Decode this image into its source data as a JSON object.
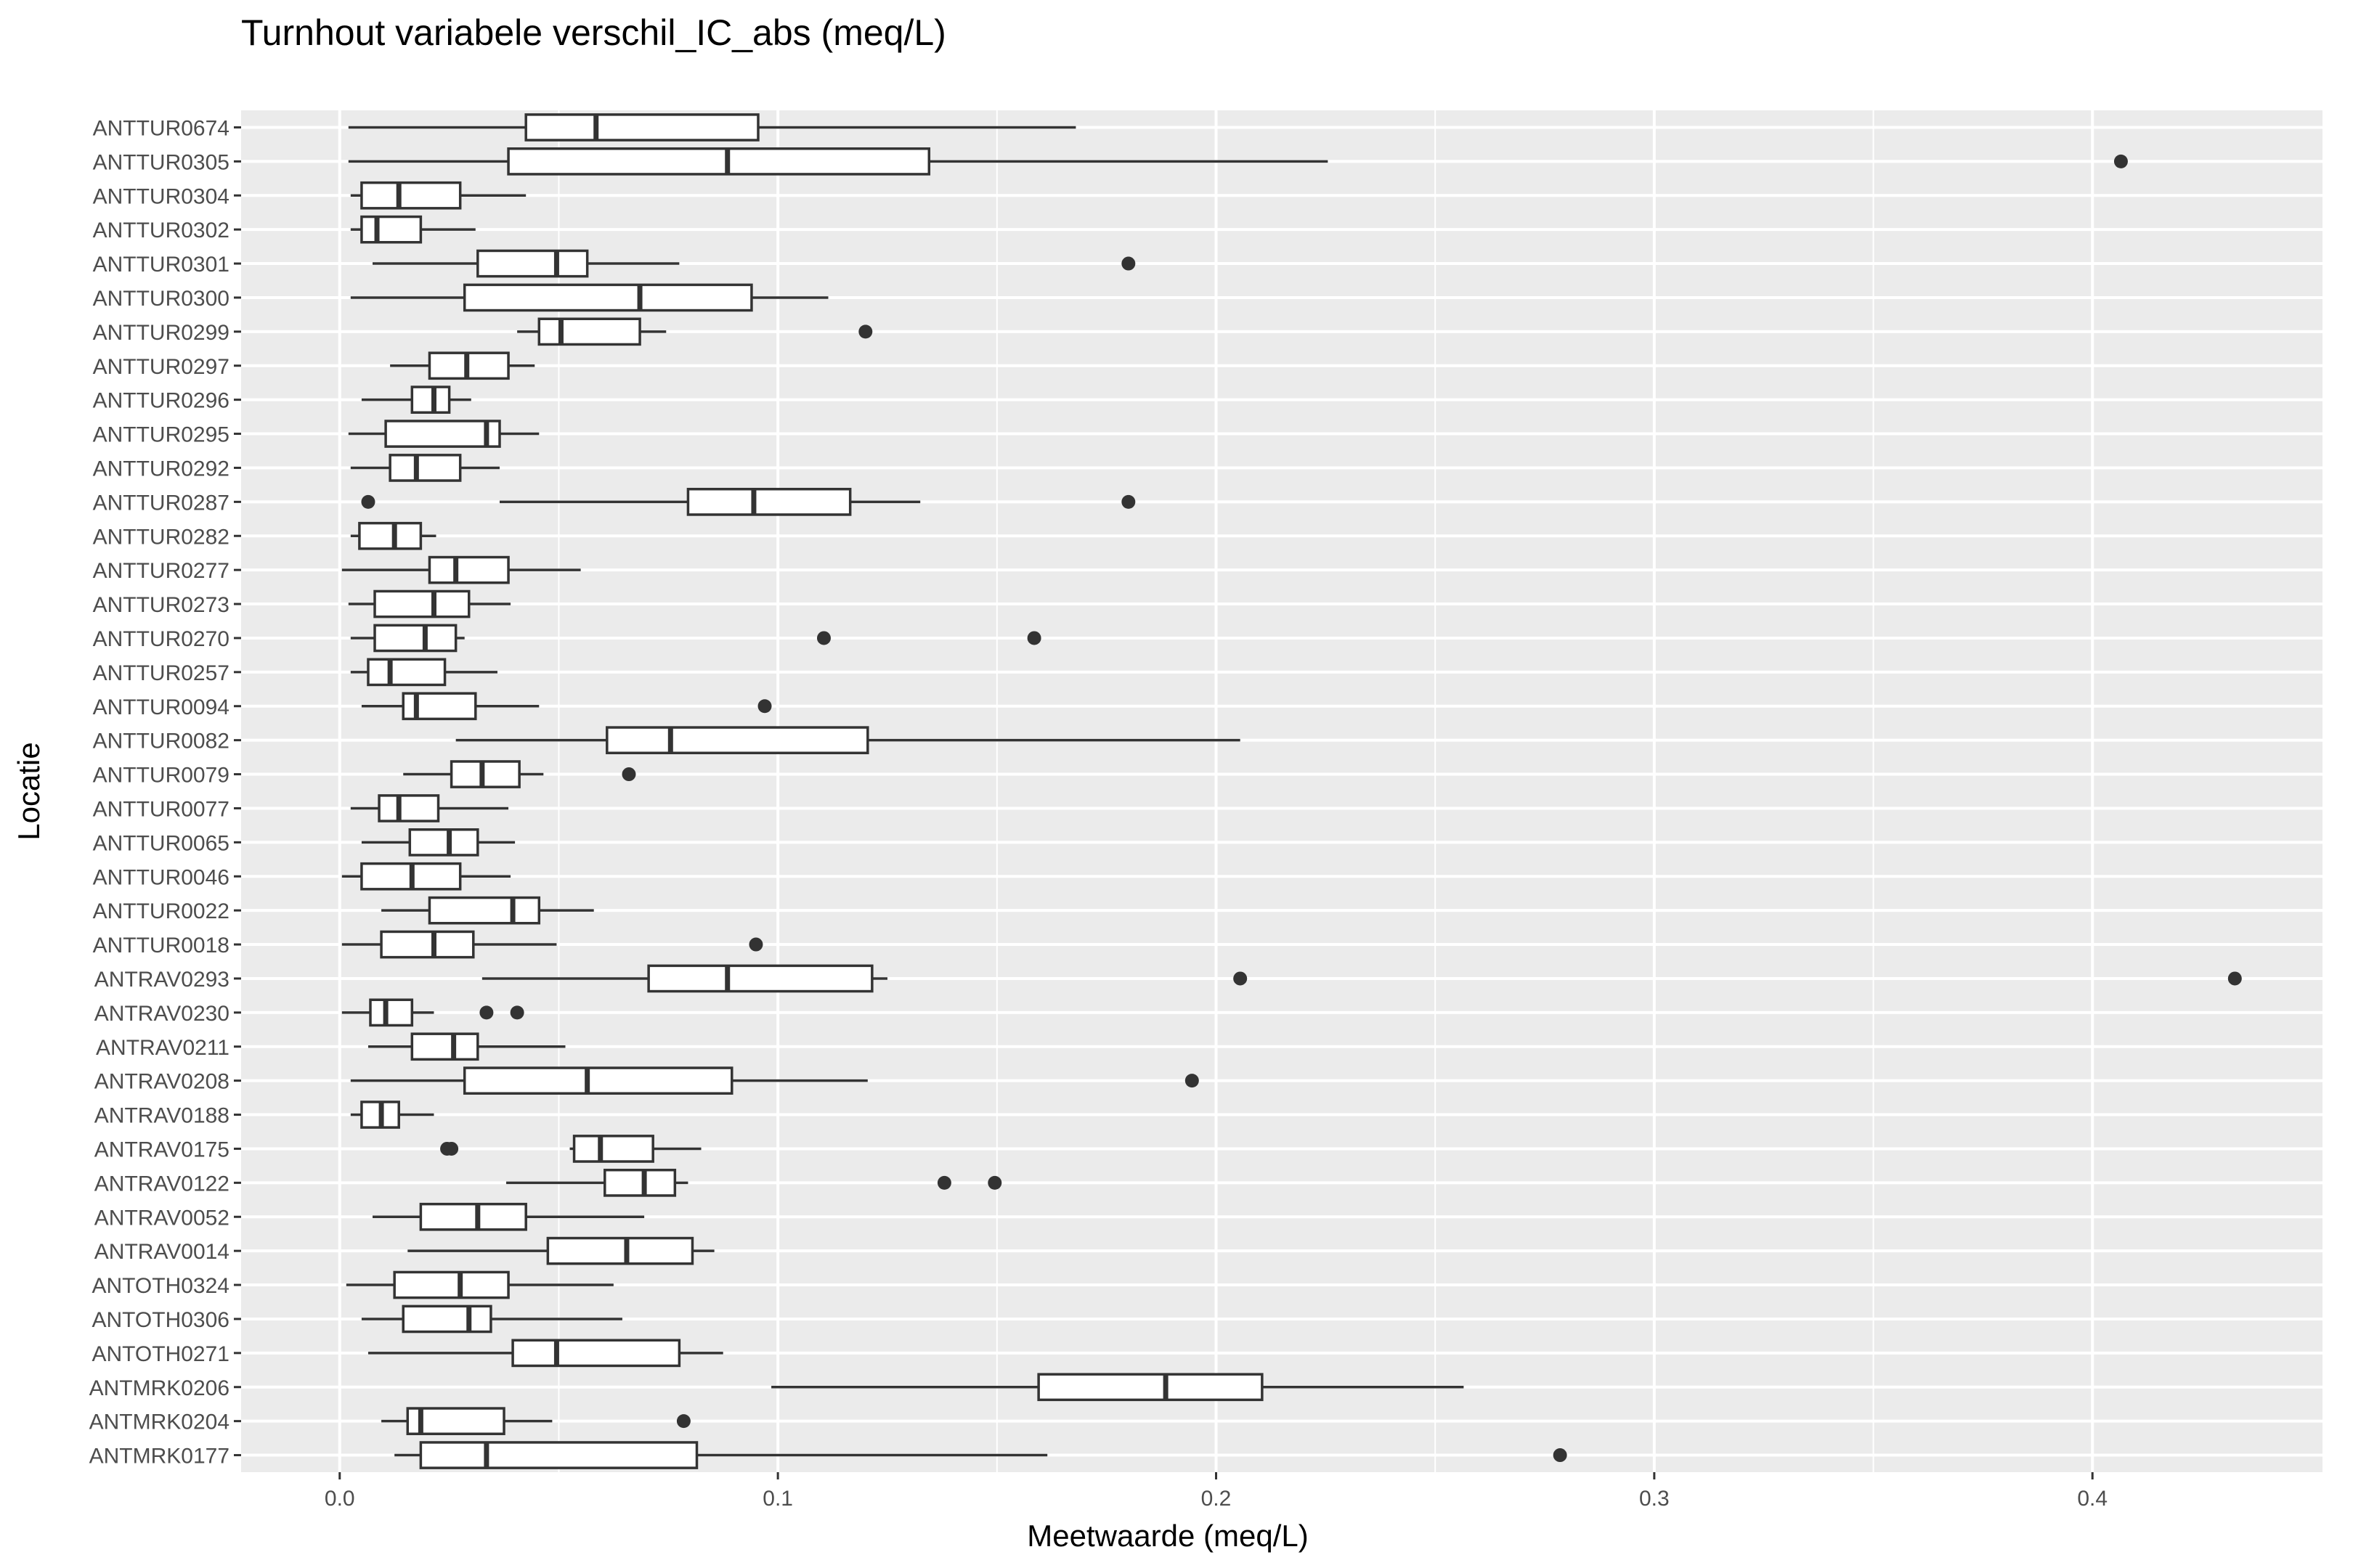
{
  "chart_data": {
    "type": "boxplot",
    "title": "Turnhout variabele verschil_IC_abs (meq/L)",
    "xlabel": "Meetwaarde (meq/L)",
    "ylabel": "Locatie",
    "xlim": [
      -0.0225,
      0.4525
    ],
    "xticks": [
      0.0,
      0.1,
      0.2,
      0.3,
      0.4
    ],
    "xtick_labels": [
      "0.0",
      "0.1",
      "0.2",
      "0.3",
      "0.4"
    ],
    "orientation": "horizontal",
    "grid": true,
    "background": "#ebebeb",
    "box_fill": "#ffffff",
    "line_color": "#333333",
    "categories": [
      "ANTTUR0674",
      "ANTTUR0305",
      "ANTTUR0304",
      "ANTTUR0302",
      "ANTTUR0301",
      "ANTTUR0300",
      "ANTTUR0299",
      "ANTTUR0297",
      "ANTTUR0296",
      "ANTTUR0295",
      "ANTTUR0292",
      "ANTTUR0287",
      "ANTTUR0282",
      "ANTTUR0277",
      "ANTTUR0273",
      "ANTTUR0270",
      "ANTTUR0257",
      "ANTTUR0094",
      "ANTTUR0082",
      "ANTTUR0079",
      "ANTTUR0077",
      "ANTTUR0065",
      "ANTTUR0046",
      "ANTTUR0022",
      "ANTTUR0018",
      "ANTRAV0293",
      "ANTRAV0230",
      "ANTRAV0211",
      "ANTRAV0208",
      "ANTRAV0188",
      "ANTRAV0175",
      "ANTRAV0122",
      "ANTRAV0052",
      "ANTRAV0014",
      "ANTOTH0324",
      "ANTOTH0306",
      "ANTOTH0271",
      "ANTMRK0206",
      "ANTMRK0204",
      "ANTMRK0177"
    ],
    "boxes": [
      {
        "whisker_low": 0.002,
        "q1": 0.0425,
        "median": 0.0585,
        "q3": 0.0955,
        "whisker_high": 0.168,
        "outliers": []
      },
      {
        "whisker_low": 0.002,
        "q1": 0.0385,
        "median": 0.0885,
        "q3": 0.1345,
        "whisker_high": 0.2255,
        "outliers": [
          0.4065
        ]
      },
      {
        "whisker_low": 0.0025,
        "q1": 0.005,
        "median": 0.0135,
        "q3": 0.0275,
        "whisker_high": 0.0425,
        "outliers": []
      },
      {
        "whisker_low": 0.0025,
        "q1": 0.005,
        "median": 0.0085,
        "q3": 0.0185,
        "whisker_high": 0.031,
        "outliers": []
      },
      {
        "whisker_low": 0.0075,
        "q1": 0.0315,
        "median": 0.0495,
        "q3": 0.0565,
        "whisker_high": 0.0775,
        "outliers": [
          0.18
        ]
      },
      {
        "whisker_low": 0.0025,
        "q1": 0.0285,
        "median": 0.0685,
        "q3": 0.094,
        "whisker_high": 0.1115,
        "outliers": []
      },
      {
        "whisker_low": 0.0405,
        "q1": 0.0455,
        "median": 0.0505,
        "q3": 0.0685,
        "whisker_high": 0.0745,
        "outliers": [
          0.12
        ]
      },
      {
        "whisker_low": 0.0115,
        "q1": 0.0205,
        "median": 0.029,
        "q3": 0.0385,
        "whisker_high": 0.0445,
        "outliers": []
      },
      {
        "whisker_low": 0.005,
        "q1": 0.0165,
        "median": 0.0215,
        "q3": 0.025,
        "whisker_high": 0.03,
        "outliers": []
      },
      {
        "whisker_low": 0.002,
        "q1": 0.0105,
        "median": 0.0335,
        "q3": 0.0365,
        "whisker_high": 0.0455,
        "outliers": []
      },
      {
        "whisker_low": 0.0025,
        "q1": 0.0115,
        "median": 0.0175,
        "q3": 0.0275,
        "whisker_high": 0.0365,
        "outliers": []
      },
      {
        "whisker_low": 0.0365,
        "q1": 0.0795,
        "median": 0.0945,
        "q3": 0.1165,
        "whisker_high": 0.1325,
        "outliers": [
          0.0065,
          0.18
        ]
      },
      {
        "whisker_low": 0.0025,
        "q1": 0.0045,
        "median": 0.0125,
        "q3": 0.0185,
        "whisker_high": 0.022,
        "outliers": []
      },
      {
        "whisker_low": 0.0005,
        "q1": 0.0205,
        "median": 0.0265,
        "q3": 0.0385,
        "whisker_high": 0.055,
        "outliers": []
      },
      {
        "whisker_low": 0.002,
        "q1": 0.008,
        "median": 0.0215,
        "q3": 0.0295,
        "whisker_high": 0.039,
        "outliers": []
      },
      {
        "whisker_low": 0.0025,
        "q1": 0.008,
        "median": 0.0195,
        "q3": 0.0265,
        "whisker_high": 0.0285,
        "outliers": [
          0.1105,
          0.1585
        ]
      },
      {
        "whisker_low": 0.0025,
        "q1": 0.0065,
        "median": 0.0115,
        "q3": 0.024,
        "whisker_high": 0.036,
        "outliers": []
      },
      {
        "whisker_low": 0.005,
        "q1": 0.0145,
        "median": 0.0175,
        "q3": 0.031,
        "whisker_high": 0.0455,
        "outliers": [
          0.097
        ]
      },
      {
        "whisker_low": 0.0265,
        "q1": 0.061,
        "median": 0.0755,
        "q3": 0.1205,
        "whisker_high": 0.2055,
        "outliers": []
      },
      {
        "whisker_low": 0.0145,
        "q1": 0.0255,
        "median": 0.0325,
        "q3": 0.041,
        "whisker_high": 0.0465,
        "outliers": [
          0.066
        ]
      },
      {
        "whisker_low": 0.0025,
        "q1": 0.009,
        "median": 0.0135,
        "q3": 0.0225,
        "whisker_high": 0.0385,
        "outliers": []
      },
      {
        "whisker_low": 0.005,
        "q1": 0.016,
        "median": 0.025,
        "q3": 0.0315,
        "whisker_high": 0.04,
        "outliers": []
      },
      {
        "whisker_low": 0.0005,
        "q1": 0.005,
        "median": 0.0165,
        "q3": 0.0275,
        "whisker_high": 0.039,
        "outliers": []
      },
      {
        "whisker_low": 0.0095,
        "q1": 0.0205,
        "median": 0.0395,
        "q3": 0.0455,
        "whisker_high": 0.058,
        "outliers": []
      },
      {
        "whisker_low": 0.0005,
        "q1": 0.0095,
        "median": 0.0215,
        "q3": 0.0305,
        "whisker_high": 0.0495,
        "outliers": [
          0.095
        ]
      },
      {
        "whisker_low": 0.0325,
        "q1": 0.0705,
        "median": 0.0885,
        "q3": 0.1215,
        "whisker_high": 0.125,
        "outliers": [
          0.2055,
          0.4325
        ]
      },
      {
        "whisker_low": 0.0005,
        "q1": 0.007,
        "median": 0.0105,
        "q3": 0.0165,
        "whisker_high": 0.0215,
        "outliers": [
          0.0335,
          0.0405
        ]
      },
      {
        "whisker_low": 0.0065,
        "q1": 0.0165,
        "median": 0.026,
        "q3": 0.0315,
        "whisker_high": 0.0515,
        "outliers": []
      },
      {
        "whisker_low": 0.0025,
        "q1": 0.0285,
        "median": 0.0565,
        "q3": 0.0895,
        "whisker_high": 0.1205,
        "outliers": [
          0.1945
        ]
      },
      {
        "whisker_low": 0.0025,
        "q1": 0.005,
        "median": 0.0095,
        "q3": 0.0135,
        "whisker_high": 0.0215,
        "outliers": []
      },
      {
        "whisker_low": 0.0525,
        "q1": 0.0535,
        "median": 0.0595,
        "q3": 0.0715,
        "whisker_high": 0.0825,
        "outliers": [
          0.0245,
          0.0255
        ]
      },
      {
        "whisker_low": 0.038,
        "q1": 0.0605,
        "median": 0.0695,
        "q3": 0.0765,
        "whisker_high": 0.0795,
        "outliers": [
          0.138,
          0.1495
        ]
      },
      {
        "whisker_low": 0.0075,
        "q1": 0.0185,
        "median": 0.0315,
        "q3": 0.0425,
        "whisker_high": 0.0695,
        "outliers": []
      },
      {
        "whisker_low": 0.0155,
        "q1": 0.0475,
        "median": 0.0655,
        "q3": 0.0805,
        "whisker_high": 0.0855,
        "outliers": []
      },
      {
        "whisker_low": 0.0015,
        "q1": 0.0125,
        "median": 0.0275,
        "q3": 0.0385,
        "whisker_high": 0.0625,
        "outliers": []
      },
      {
        "whisker_low": 0.005,
        "q1": 0.0145,
        "median": 0.0295,
        "q3": 0.0345,
        "whisker_high": 0.0645,
        "outliers": []
      },
      {
        "whisker_low": 0.0065,
        "q1": 0.0395,
        "median": 0.0495,
        "q3": 0.0775,
        "whisker_high": 0.0875,
        "outliers": []
      },
      {
        "whisker_low": 0.0985,
        "q1": 0.1595,
        "median": 0.1885,
        "q3": 0.2105,
        "whisker_high": 0.2565,
        "outliers": []
      },
      {
        "whisker_low": 0.0095,
        "q1": 0.0155,
        "median": 0.0185,
        "q3": 0.0375,
        "whisker_high": 0.0485,
        "outliers": [
          0.0785
        ]
      },
      {
        "whisker_low": 0.0125,
        "q1": 0.0185,
        "median": 0.0335,
        "q3": 0.0815,
        "whisker_high": 0.1615,
        "outliers": [
          0.2785
        ]
      }
    ]
  }
}
